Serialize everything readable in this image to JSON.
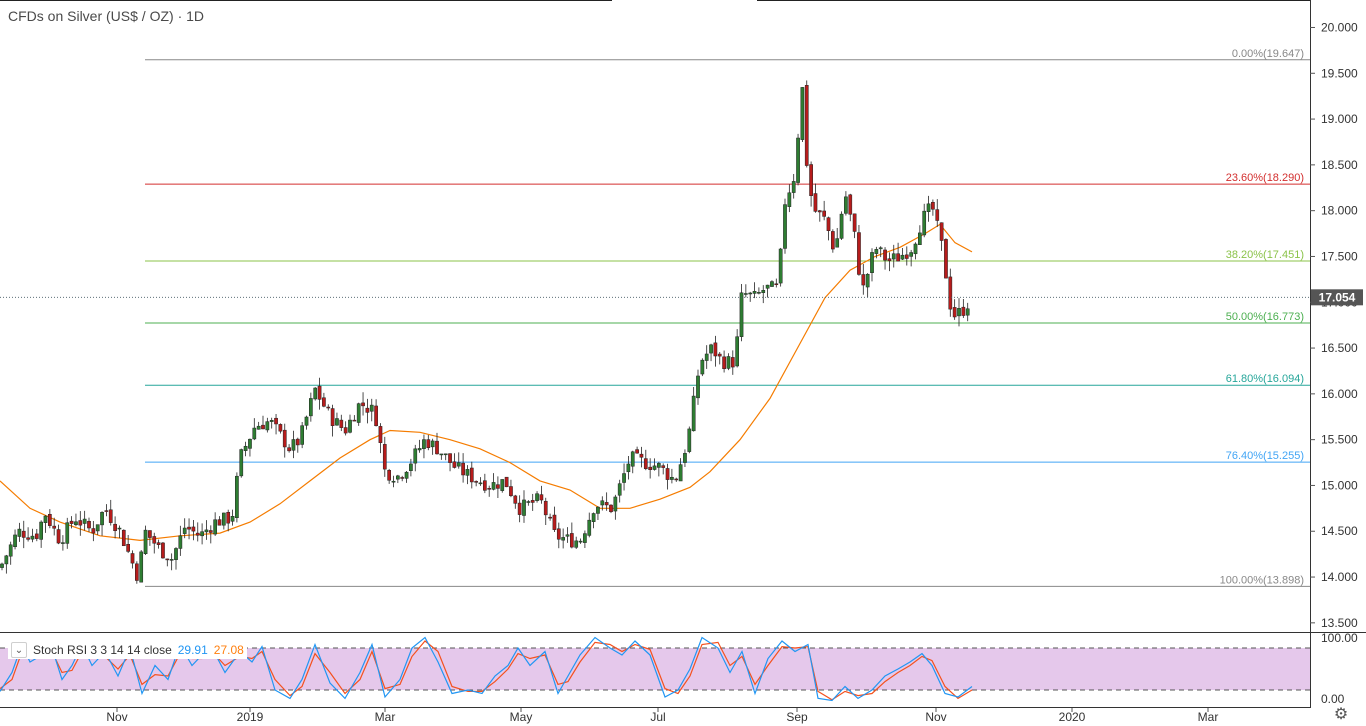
{
  "title": "CFDs on Silver (US$ / OZ) · 1D",
  "colors": {
    "up": "#2e7d32",
    "down": "#b71c1c",
    "ma": "#f57c00",
    "stoch_k": "#2196f3",
    "stoch_d": "#f4511e",
    "stoch_band": "#e1bee7",
    "price_label_bg": "#555555"
  },
  "current_price": "17.054",
  "indicator": {
    "toggle_glyph": "⌄",
    "name": "Stoch RSI 3 3 14 14 close",
    "k_value": "29.91",
    "d_value": "27.08",
    "upper_label": "100.00",
    "lower_label": "0.00"
  },
  "settings_glyph": "⚙",
  "chart_data": {
    "type": "candlestick",
    "y_range": [
      13.4,
      20.3
    ],
    "y_ticks": [
      "20.000",
      "19.500",
      "19.000",
      "18.500",
      "18.000",
      "17.500",
      "17.000",
      "16.500",
      "16.000",
      "15.500",
      "15.000",
      "14.500",
      "14.000",
      "13.500"
    ],
    "x_ticks": [
      "Nov",
      "2019",
      "Mar",
      "May",
      "Jul",
      "Sep",
      "Nov",
      "2020",
      "Mar"
    ],
    "fib_levels": [
      {
        "label": "0.00%(19.647)",
        "value": 19.647,
        "color": "#888888"
      },
      {
        "label": "23.60%(18.290)",
        "value": 18.29,
        "color": "#d32f2f"
      },
      {
        "label": "38.20%(17.451)",
        "value": 17.451,
        "color": "#8bc34a"
      },
      {
        "label": "50.00%(16.773)",
        "value": 16.773,
        "color": "#4caf50"
      },
      {
        "label": "61.80%(16.094)",
        "value": 16.094,
        "color": "#26a69a"
      },
      {
        "label": "76.40%(15.255)",
        "value": 15.255,
        "color": "#42a5f5"
      },
      {
        "label": "100.00%(13.898)",
        "value": 13.898,
        "color": "#888888"
      }
    ],
    "close_path": [
      [
        0,
        14.1
      ],
      [
        18,
        14.5
      ],
      [
        36,
        14.45
      ],
      [
        45,
        14.7
      ],
      [
        60,
        14.4
      ],
      [
        75,
        14.65
      ],
      [
        92,
        14.5
      ],
      [
        105,
        14.75
      ],
      [
        120,
        14.5
      ],
      [
        138,
        14.0
      ],
      [
        145,
        14.5
      ],
      [
        160,
        14.3
      ],
      [
        172,
        14.2
      ],
      [
        185,
        14.55
      ],
      [
        200,
        14.45
      ],
      [
        215,
        14.6
      ],
      [
        232,
        14.65
      ],
      [
        240,
        15.3
      ],
      [
        255,
        15.65
      ],
      [
        270,
        15.7
      ],
      [
        290,
        15.4
      ],
      [
        300,
        15.5
      ],
      [
        315,
        16.05
      ],
      [
        330,
        15.75
      ],
      [
        345,
        15.6
      ],
      [
        360,
        15.9
      ],
      [
        375,
        15.8
      ],
      [
        385,
        15.15
      ],
      [
        398,
        15.1
      ],
      [
        410,
        15.25
      ],
      [
        425,
        15.5
      ],
      [
        438,
        15.4
      ],
      [
        455,
        15.2
      ],
      [
        470,
        15.1
      ],
      [
        490,
        15.0
      ],
      [
        505,
        15.05
      ],
      [
        520,
        14.75
      ],
      [
        540,
        14.85
      ],
      [
        555,
        14.45
      ],
      [
        570,
        14.4
      ],
      [
        580,
        14.4
      ],
      [
        595,
        14.8
      ],
      [
        612,
        14.75
      ],
      [
        630,
        15.3
      ],
      [
        645,
        15.25
      ],
      [
        660,
        15.2
      ],
      [
        675,
        15.05
      ],
      [
        688,
        15.5
      ],
      [
        700,
        16.35
      ],
      [
        712,
        16.5
      ],
      [
        722,
        16.35
      ],
      [
        735,
        16.35
      ],
      [
        742,
        17.1
      ],
      [
        755,
        17.05
      ],
      [
        765,
        17.15
      ],
      [
        778,
        17.15
      ],
      [
        785,
        18.1
      ],
      [
        795,
        18.4
      ],
      [
        802,
        19.4
      ],
      [
        808,
        18.3
      ],
      [
        815,
        18.0
      ],
      [
        825,
        17.9
      ],
      [
        835,
        17.55
      ],
      [
        845,
        18.2
      ],
      [
        855,
        17.7
      ],
      [
        862,
        17.1
      ],
      [
        875,
        17.6
      ],
      [
        888,
        17.45
      ],
      [
        900,
        17.5
      ],
      [
        912,
        17.6
      ],
      [
        922,
        17.9
      ],
      [
        932,
        18.05
      ],
      [
        942,
        17.6
      ],
      [
        952,
        16.85
      ],
      [
        962,
        16.9
      ],
      [
        972,
        17.05
      ]
    ],
    "ma_path": [
      [
        0,
        15.05
      ],
      [
        30,
        14.75
      ],
      [
        60,
        14.6
      ],
      [
        100,
        14.45
      ],
      [
        140,
        14.4
      ],
      [
        180,
        14.45
      ],
      [
        220,
        14.48
      ],
      [
        250,
        14.6
      ],
      [
        280,
        14.8
      ],
      [
        310,
        15.05
      ],
      [
        340,
        15.3
      ],
      [
        370,
        15.5
      ],
      [
        390,
        15.6
      ],
      [
        420,
        15.58
      ],
      [
        450,
        15.5
      ],
      [
        480,
        15.4
      ],
      [
        510,
        15.25
      ],
      [
        540,
        15.05
      ],
      [
        570,
        14.95
      ],
      [
        600,
        14.75
      ],
      [
        630,
        14.75
      ],
      [
        660,
        14.85
      ],
      [
        690,
        14.98
      ],
      [
        710,
        15.15
      ],
      [
        740,
        15.5
      ],
      [
        770,
        15.95
      ],
      [
        800,
        16.55
      ],
      [
        825,
        17.05
      ],
      [
        850,
        17.35
      ],
      [
        875,
        17.5
      ],
      [
        900,
        17.6
      ],
      [
        925,
        17.75
      ],
      [
        940,
        17.85
      ],
      [
        955,
        17.65
      ],
      [
        972,
        17.55
      ]
    ],
    "stoch_rsi": {
      "range": [
        0,
        100
      ],
      "band": [
        20,
        80
      ],
      "k_path": [
        [
          0,
          18
        ],
        [
          12,
          45
        ],
        [
          22,
          85
        ],
        [
          30,
          60
        ],
        [
          42,
          70
        ],
        [
          52,
          80
        ],
        [
          62,
          35
        ],
        [
          72,
          55
        ],
        [
          82,
          85
        ],
        [
          92,
          55
        ],
        [
          105,
          75
        ],
        [
          118,
          40
        ],
        [
          130,
          80
        ],
        [
          142,
          15
        ],
        [
          155,
          55
        ],
        [
          168,
          35
        ],
        [
          180,
          85
        ],
        [
          192,
          55
        ],
        [
          202,
          70
        ],
        [
          212,
          80
        ],
        [
          225,
          45
        ],
        [
          240,
          75
        ],
        [
          252,
          60
        ],
        [
          262,
          82
        ],
        [
          275,
          20
        ],
        [
          290,
          8
        ],
        [
          302,
          35
        ],
        [
          315,
          85
        ],
        [
          330,
          30
        ],
        [
          345,
          8
        ],
        [
          360,
          45
        ],
        [
          372,
          85
        ],
        [
          385,
          10
        ],
        [
          400,
          35
        ],
        [
          412,
          80
        ],
        [
          425,
          95
        ],
        [
          438,
          60
        ],
        [
          452,
          15
        ],
        [
          468,
          20
        ],
        [
          482,
          15
        ],
        [
          495,
          40
        ],
        [
          508,
          55
        ],
        [
          518,
          80
        ],
        [
          530,
          55
        ],
        [
          545,
          75
        ],
        [
          558,
          15
        ],
        [
          568,
          40
        ],
        [
          580,
          70
        ],
        [
          595,
          95
        ],
        [
          610,
          80
        ],
        [
          622,
          70
        ],
        [
          635,
          90
        ],
        [
          650,
          70
        ],
        [
          665,
          10
        ],
        [
          678,
          20
        ],
        [
          690,
          50
        ],
        [
          702,
          95
        ],
        [
          718,
          80
        ],
        [
          730,
          45
        ],
        [
          742,
          75
        ],
        [
          755,
          15
        ],
        [
          768,
          65
        ],
        [
          782,
          90
        ],
        [
          795,
          75
        ],
        [
          808,
          85
        ],
        [
          818,
          8
        ],
        [
          832,
          5
        ],
        [
          845,
          25
        ],
        [
          858,
          8
        ],
        [
          872,
          20
        ],
        [
          885,
          40
        ],
        [
          898,
          50
        ],
        [
          910,
          60
        ],
        [
          922,
          72
        ],
        [
          932,
          55
        ],
        [
          945,
          15
        ],
        [
          958,
          10
        ],
        [
          972,
          25
        ]
      ],
      "d_path": [
        [
          0,
          22
        ],
        [
          12,
          35
        ],
        [
          22,
          75
        ],
        [
          30,
          70
        ],
        [
          42,
          65
        ],
        [
          52,
          75
        ],
        [
          62,
          45
        ],
        [
          72,
          48
        ],
        [
          82,
          75
        ],
        [
          92,
          65
        ],
        [
          105,
          68
        ],
        [
          118,
          50
        ],
        [
          130,
          70
        ],
        [
          142,
          28
        ],
        [
          155,
          42
        ],
        [
          168,
          40
        ],
        [
          180,
          72
        ],
        [
          192,
          65
        ],
        [
          202,
          65
        ],
        [
          212,
          75
        ],
        [
          225,
          55
        ],
        [
          240,
          68
        ],
        [
          252,
          65
        ],
        [
          262,
          75
        ],
        [
          275,
          35
        ],
        [
          290,
          12
        ],
        [
          302,
          25
        ],
        [
          315,
          72
        ],
        [
          330,
          45
        ],
        [
          345,
          15
        ],
        [
          360,
          35
        ],
        [
          372,
          75
        ],
        [
          385,
          22
        ],
        [
          400,
          28
        ],
        [
          412,
          68
        ],
        [
          425,
          90
        ],
        [
          438,
          75
        ],
        [
          452,
          25
        ],
        [
          468,
          18
        ],
        [
          482,
          18
        ],
        [
          495,
          32
        ],
        [
          508,
          50
        ],
        [
          518,
          72
        ],
        [
          530,
          65
        ],
        [
          545,
          70
        ],
        [
          558,
          28
        ],
        [
          568,
          32
        ],
        [
          580,
          60
        ],
        [
          595,
          88
        ],
        [
          610,
          85
        ],
        [
          622,
          75
        ],
        [
          635,
          85
        ],
        [
          650,
          78
        ],
        [
          665,
          22
        ],
        [
          678,
          15
        ],
        [
          690,
          40
        ],
        [
          702,
          85
        ],
        [
          718,
          88
        ],
        [
          730,
          55
        ],
        [
          742,
          68
        ],
        [
          755,
          28
        ],
        [
          768,
          55
        ],
        [
          782,
          82
        ],
        [
          795,
          80
        ],
        [
          808,
          82
        ],
        [
          818,
          18
        ],
        [
          832,
          6
        ],
        [
          845,
          18
        ],
        [
          858,
          12
        ],
        [
          872,
          15
        ],
        [
          885,
          32
        ],
        [
          898,
          45
        ],
        [
          910,
          55
        ],
        [
          922,
          68
        ],
        [
          932,
          62
        ],
        [
          945,
          25
        ],
        [
          958,
          8
        ],
        [
          972,
          20
        ]
      ]
    }
  }
}
